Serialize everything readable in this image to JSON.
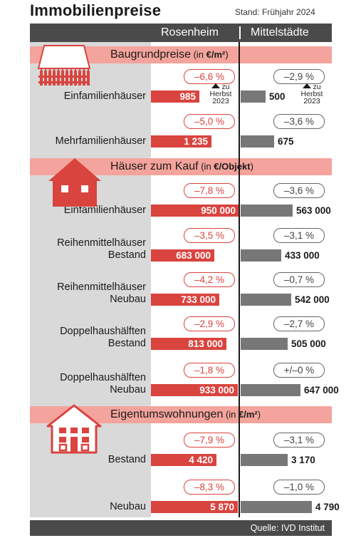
{
  "title": "Immobilienpreise",
  "stand": "Stand: Frühjahr 2024",
  "header": {
    "col_rosenheim": "Rosenheim",
    "col_mittel": "Mittelstädte"
  },
  "compare_note": {
    "line1": "zu",
    "line2": "Herbst",
    "line3": "2023"
  },
  "source": "Quelle: IVD Institut",
  "colors": {
    "rosenheim_bar": "#d9443f",
    "mittel_bar": "#777777",
    "section_band": "#f4a49c",
    "header_band": "#4a4a4a"
  },
  "chart_data": {
    "type": "bar",
    "title": "Immobilienpreise",
    "series": [
      {
        "name": "Rosenheim"
      },
      {
        "name": "Mittelstädte"
      }
    ],
    "sections": [
      {
        "title": "Baugrundpreise",
        "unit_prefix": " (in ",
        "unit": "€/m²",
        "unit_suffix": ")",
        "icon": "fence-icon",
        "rows": [
          {
            "label": [
              "Einfamilienhäuser"
            ],
            "rosenheim": 985,
            "rosenheim_text": "985",
            "rosenheim_change": "–6,6 %",
            "mittel": 500,
            "mittel_text": "500",
            "mittel_change": "–2,9 %",
            "note": true
          },
          {
            "label": [
              "Mehrfamilienhäuser"
            ],
            "rosenheim": 1235,
            "rosenheim_text": "1 235",
            "rosenheim_change": "–5,0 %",
            "mittel": 675,
            "mittel_text": "675",
            "mittel_change": "–3,6 %"
          }
        ]
      },
      {
        "title": "Häuser zum Kauf",
        "unit_prefix": " (in ",
        "unit": "€/Objekt",
        "unit_suffix": ")",
        "icon": "house-icon",
        "rows": [
          {
            "label": [
              "Einfamilienhäuser"
            ],
            "rosenheim": 950000,
            "rosenheim_text": "950 000",
            "rosenheim_change": "–7,8 %",
            "mittel": 563000,
            "mittel_text": "563 000",
            "mittel_change": "–3,6 %"
          },
          {
            "label": [
              "Reihenmittelhäuser",
              "Bestand"
            ],
            "rosenheim": 683000,
            "rosenheim_text": "683 000",
            "rosenheim_change": "–3,5 %",
            "mittel": 433000,
            "mittel_text": "433 000",
            "mittel_change": "–3,1 %"
          },
          {
            "label": [
              "Reihenmittelhäuser",
              "Neubau"
            ],
            "rosenheim": 733000,
            "rosenheim_text": "733 000",
            "rosenheim_change": "–4,2 %",
            "mittel": 542000,
            "mittel_text": "542 000",
            "mittel_change": "–0,7 %"
          },
          {
            "label": [
              "Doppelhaushälften",
              "Bestand"
            ],
            "rosenheim": 813000,
            "rosenheim_text": "813 000",
            "rosenheim_change": "–2,9 %",
            "mittel": 505000,
            "mittel_text": "505 000",
            "mittel_change": "–2,7 %"
          },
          {
            "label": [
              "Doppelhaushälften",
              "Neubau"
            ],
            "rosenheim": 933000,
            "rosenheim_text": "933 000",
            "rosenheim_change": "–1,8 %",
            "mittel": 647000,
            "mittel_text": "647 000",
            "mittel_change": "+/–0 %"
          }
        ]
      },
      {
        "title": "Eigentumswohnungen",
        "unit_prefix": " (in ",
        "unit": "€/m²",
        "unit_suffix": ")",
        "icon": "apartment-building-icon",
        "rows": [
          {
            "label": [
              "Bestand"
            ],
            "rosenheim": 4420,
            "rosenheim_text": "4 420",
            "rosenheim_change": "–7,9 %",
            "mittel": 3170,
            "mittel_text": "3 170",
            "mittel_change": "–3,1 %"
          },
          {
            "label": [
              "Neubau"
            ],
            "rosenheim": 5870,
            "rosenheim_text": "5 870",
            "rosenheim_change": "–8,3 %",
            "mittel": 4790,
            "mittel_text": "4 790",
            "mittel_change": "–1,0 %"
          }
        ]
      }
    ]
  }
}
